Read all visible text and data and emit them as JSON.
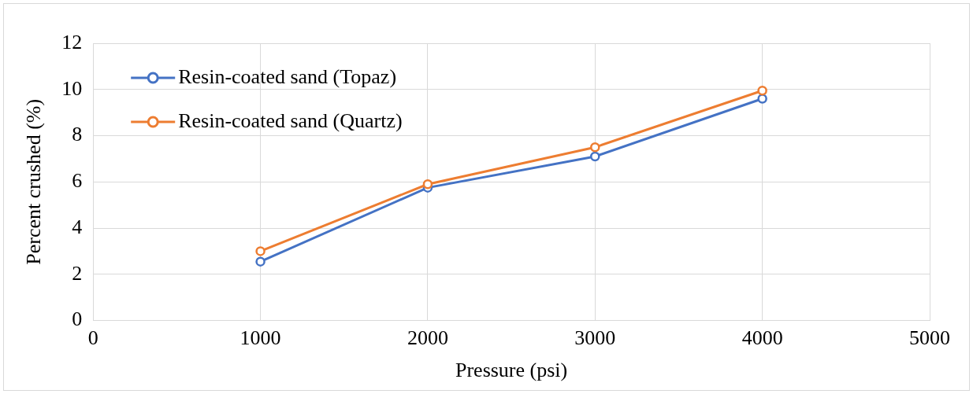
{
  "chart_data": {
    "type": "line",
    "xlabel": "Pressure (psi)",
    "ylabel": "Percent crushed (%)",
    "x": [
      1000,
      2000,
      3000,
      4000
    ],
    "series": [
      {
        "name": "Resin-coated sand (Topaz)",
        "color": "#4472c4",
        "values": [
          2.55,
          5.75,
          7.1,
          9.6
        ]
      },
      {
        "name": "Resin-coated sand (Quartz)",
        "color": "#ed7d31",
        "values": [
          3.0,
          5.9,
          7.5,
          9.95
        ]
      }
    ],
    "xlim": [
      0,
      5000
    ],
    "xticks": [
      0,
      1000,
      2000,
      3000,
      4000,
      5000
    ],
    "ylim": [
      0,
      12
    ],
    "yticks": [
      0,
      2,
      4,
      6,
      8,
      10,
      12
    ],
    "grid": true,
    "legend": "top left",
    "marker": "circle",
    "line_style": "solid"
  }
}
